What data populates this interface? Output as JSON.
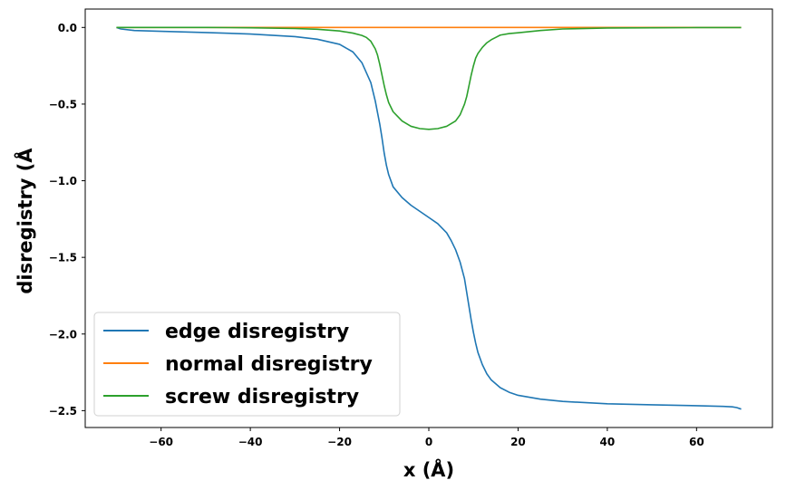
{
  "chart_data": {
    "type": "line",
    "title": "",
    "xlabel": "x (Å)",
    "ylabel": "disregistry (Å",
    "xlim": [
      -77,
      77
    ],
    "ylim": [
      -2.61,
      0.12
    ],
    "xticks": [
      -60,
      -40,
      -20,
      0,
      20,
      40,
      60
    ],
    "yticks": [
      0.0,
      -0.5,
      -1.0,
      -1.5,
      -2.0,
      -2.5
    ],
    "xtick_labels": [
      "−60",
      "−40",
      "−20",
      "0",
      "20",
      "40",
      "60"
    ],
    "ytick_labels": [
      "0.0",
      "−0.5",
      "−1.0",
      "−1.5",
      "−2.0",
      "−2.5"
    ],
    "grid": false,
    "legend_position": "lower-left",
    "series": [
      {
        "name": "edge disregistry",
        "color": "#1f77b4",
        "x": [
          -70,
          -69,
          -66,
          -60,
          -50,
          -40,
          -30,
          -25,
          -20,
          -17,
          -15,
          -13,
          -12,
          -11,
          -10.5,
          -10,
          -9.5,
          -9,
          -8,
          -6,
          -4,
          -2,
          0,
          2,
          4,
          5,
          6,
          7,
          8,
          8.5,
          9,
          9.5,
          10,
          10.5,
          11,
          12,
          13,
          14,
          16,
          18,
          20,
          25,
          30,
          40,
          50,
          60,
          66,
          68,
          69,
          70
        ],
        "y": [
          0.0,
          -0.01,
          -0.02,
          -0.025,
          -0.033,
          -0.043,
          -0.06,
          -0.077,
          -0.11,
          -0.16,
          -0.23,
          -0.36,
          -0.48,
          -0.63,
          -0.72,
          -0.82,
          -0.9,
          -0.96,
          -1.04,
          -1.11,
          -1.16,
          -1.2,
          -1.24,
          -1.28,
          -1.34,
          -1.39,
          -1.45,
          -1.53,
          -1.64,
          -1.73,
          -1.82,
          -1.91,
          -1.99,
          -2.06,
          -2.12,
          -2.2,
          -2.26,
          -2.3,
          -2.35,
          -2.38,
          -2.4,
          -2.425,
          -2.44,
          -2.455,
          -2.462,
          -2.468,
          -2.472,
          -2.475,
          -2.48,
          -2.49
        ]
      },
      {
        "name": "normal disregistry",
        "color": "#ff7f0e",
        "x": [
          -70,
          70
        ],
        "y": [
          0.0,
          0.0
        ]
      },
      {
        "name": "screw disregistry",
        "color": "#2ca02c",
        "x": [
          -70,
          -60,
          -50,
          -40,
          -30,
          -25,
          -20,
          -17,
          -15,
          -14,
          -13,
          -12,
          -11.5,
          -11,
          -10.5,
          -10,
          -9.5,
          -9,
          -8,
          -6,
          -4,
          -2,
          0,
          2,
          4,
          6,
          7,
          8,
          8.5,
          9,
          9.5,
          10,
          10.5,
          11,
          12,
          13,
          14,
          15,
          16,
          18,
          20,
          25,
          30,
          40,
          50,
          60,
          70
        ],
        "y": [
          0.0,
          0.0,
          0.0,
          -0.002,
          -0.007,
          -0.012,
          -0.023,
          -0.037,
          -0.052,
          -0.065,
          -0.09,
          -0.14,
          -0.18,
          -0.24,
          -0.31,
          -0.38,
          -0.44,
          -0.49,
          -0.55,
          -0.61,
          -0.645,
          -0.66,
          -0.665,
          -0.66,
          -0.645,
          -0.61,
          -0.57,
          -0.5,
          -0.45,
          -0.38,
          -0.31,
          -0.25,
          -0.2,
          -0.17,
          -0.13,
          -0.1,
          -0.08,
          -0.065,
          -0.05,
          -0.04,
          -0.035,
          -0.02,
          -0.01,
          -0.004,
          -0.002,
          -0.001,
          -0.001
        ]
      }
    ]
  }
}
